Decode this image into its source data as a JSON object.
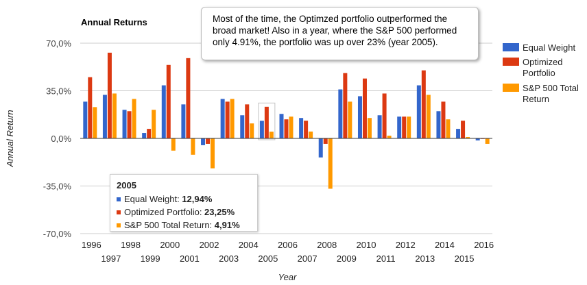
{
  "chart_data": {
    "type": "bar",
    "title": "Annual Returns",
    "xlabel": "Year",
    "ylabel": "Annual Return",
    "ylim": [
      -70,
      70
    ],
    "yticks": [
      {
        "value": 70,
        "label": "70,0%"
      },
      {
        "value": 35,
        "label": "35,0%"
      },
      {
        "value": 0,
        "label": "0,0%"
      },
      {
        "value": -35,
        "label": "-35,0%"
      },
      {
        "value": -70,
        "label": "-70,0%"
      }
    ],
    "categories": [
      "1996",
      "1997",
      "1998",
      "1999",
      "2000",
      "2001",
      "2002",
      "2003",
      "2004",
      "2005",
      "2006",
      "2007",
      "2008",
      "2009",
      "2010",
      "2011",
      "2012",
      "2013",
      "2014",
      "2015",
      "2016"
    ],
    "series": [
      {
        "name": "Equal Weight",
        "color": "#3366cc",
        "values": [
          27,
          32,
          21,
          4,
          39,
          25,
          -5,
          29,
          17,
          12.94,
          18,
          15,
          -14,
          36,
          31,
          17,
          16,
          39,
          20,
          7,
          -1.5
        ]
      },
      {
        "name": "Optimized Portfolio",
        "color": "#dc3912",
        "values": [
          45,
          63,
          20,
          7,
          54,
          59,
          -4,
          27,
          25,
          23.25,
          14,
          13,
          -4,
          48,
          44,
          33,
          16,
          50,
          27,
          13,
          0
        ]
      },
      {
        "name": "S&P 500 Total Return",
        "color": "#ff9900",
        "values": [
          23,
          33,
          29,
          21,
          -9,
          -12,
          -22,
          29,
          11,
          4.91,
          16,
          5,
          -37,
          27,
          15,
          2,
          16,
          32,
          14,
          1,
          -4
        ]
      }
    ],
    "legend": {
      "position": "right",
      "entries": [
        {
          "lines": [
            "Equal Weight"
          ]
        },
        {
          "lines": [
            "Optimized",
            "Portfolio"
          ]
        },
        {
          "lines": [
            "S&P 500 Total",
            "Return"
          ]
        }
      ]
    },
    "grid": true,
    "annotation": {
      "lines": [
        "Most of the time, the Optimzed portfolio outperformed the",
        "broad market! Also in a year, where the S&P 500 performed",
        "only 4.91%, the portfolio was up over 23% (year 2005)."
      ]
    },
    "tooltip": {
      "title": "2005",
      "highlight_index": 9,
      "rows": [
        {
          "label": "Equal Weight: ",
          "value": "12,94%",
          "color": "#3366cc"
        },
        {
          "label": "Optimized Portfolio: ",
          "value": "23,25%",
          "color": "#dc3912"
        },
        {
          "label": "S&P 500 Total Return: ",
          "value": "4,91%",
          "color": "#ff9900"
        }
      ]
    }
  }
}
